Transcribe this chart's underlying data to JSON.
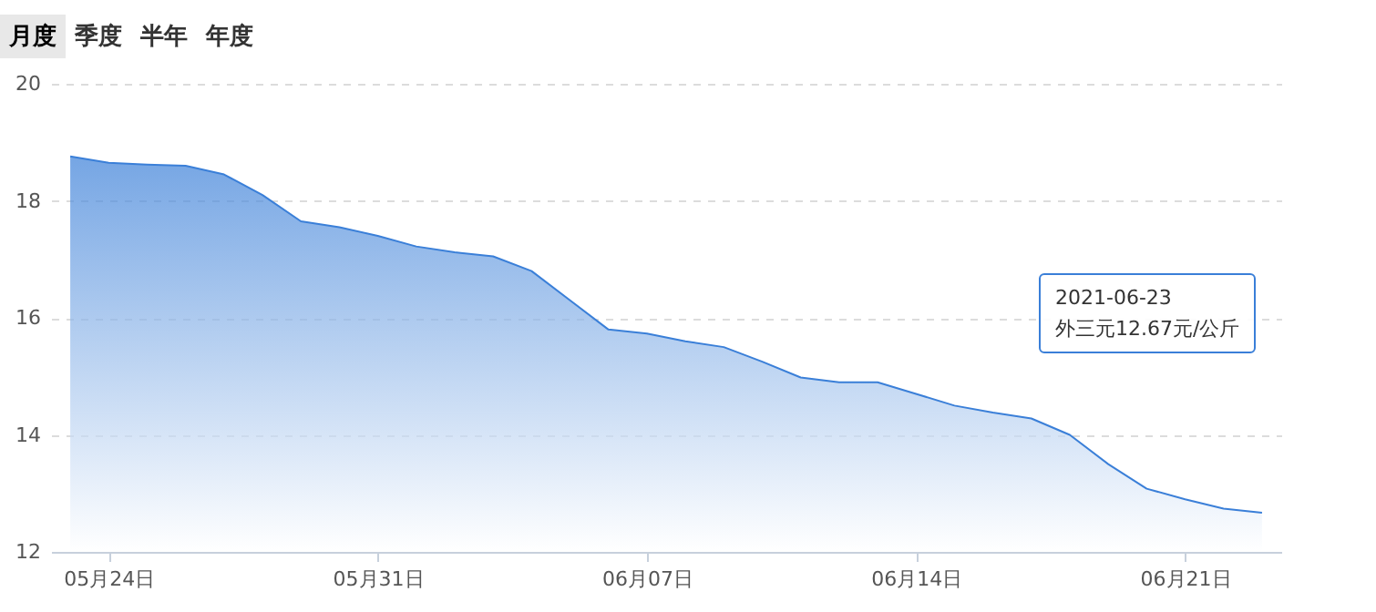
{
  "chart_data": {
    "type": "area",
    "categories": [
      null,
      "05月24日",
      null,
      null,
      null,
      null,
      null,
      null,
      "05月31日",
      null,
      null,
      null,
      null,
      null,
      null,
      "06月07日",
      null,
      null,
      null,
      null,
      null,
      null,
      "06月14日",
      null,
      null,
      null,
      null,
      null,
      null,
      "06月21日",
      null,
      null
    ],
    "series": [
      {
        "color": "#3a7fd8",
        "values": [
          18.76,
          18.65,
          18.62,
          18.6,
          18.45,
          18.1,
          17.65,
          17.55,
          17.4,
          17.22,
          17.12,
          17.05,
          16.8,
          16.3,
          15.8,
          15.73,
          15.6,
          15.5,
          15.25,
          14.98,
          14.9,
          14.9,
          14.7,
          14.5,
          14.38,
          14.28,
          14.0,
          13.5,
          13.08,
          12.9,
          12.74,
          12.67
        ]
      }
    ],
    "ylim": [
      12,
      20
    ],
    "yticks": [
      12,
      14,
      16,
      18,
      20
    ],
    "grid": "y",
    "annotations": [
      "月度",
      "季度",
      "半年",
      "年度",
      "2021-06-23\n外三元12.67元/公斤"
    ]
  }
}
